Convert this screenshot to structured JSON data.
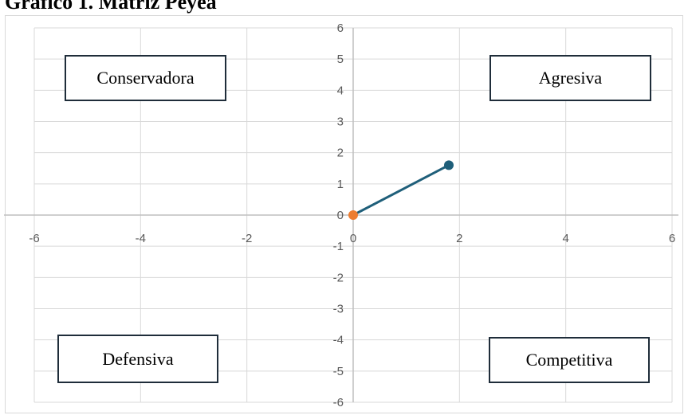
{
  "title": "Gráfico 1. Matriz Peyea",
  "chart_data": {
    "type": "scatter",
    "xlim": [
      -6,
      6
    ],
    "ylim": [
      -6,
      6
    ],
    "x_ticks": [
      -6,
      -4,
      -2,
      0,
      2,
      4,
      6
    ],
    "y_ticks": [
      -6,
      -5,
      -4,
      -3,
      -2,
      -1,
      0,
      1,
      2,
      3,
      4,
      5,
      6
    ],
    "grid": true,
    "series": [
      {
        "points": [
          {
            "x": 0,
            "y": 0
          },
          {
            "x": 1.8,
            "y": 1.6
          }
        ],
        "color": "#1f5f7a",
        "line": true
      },
      {
        "points": [
          {
            "x": 0,
            "y": 0
          }
        ],
        "color": "#ed7d31",
        "line": false
      }
    ],
    "quadrant_labels": {
      "top_left": "Conservadora",
      "top_right": "Agresiva",
      "bottom_left": "Defensiva",
      "bottom_right": "Competitiva"
    }
  }
}
